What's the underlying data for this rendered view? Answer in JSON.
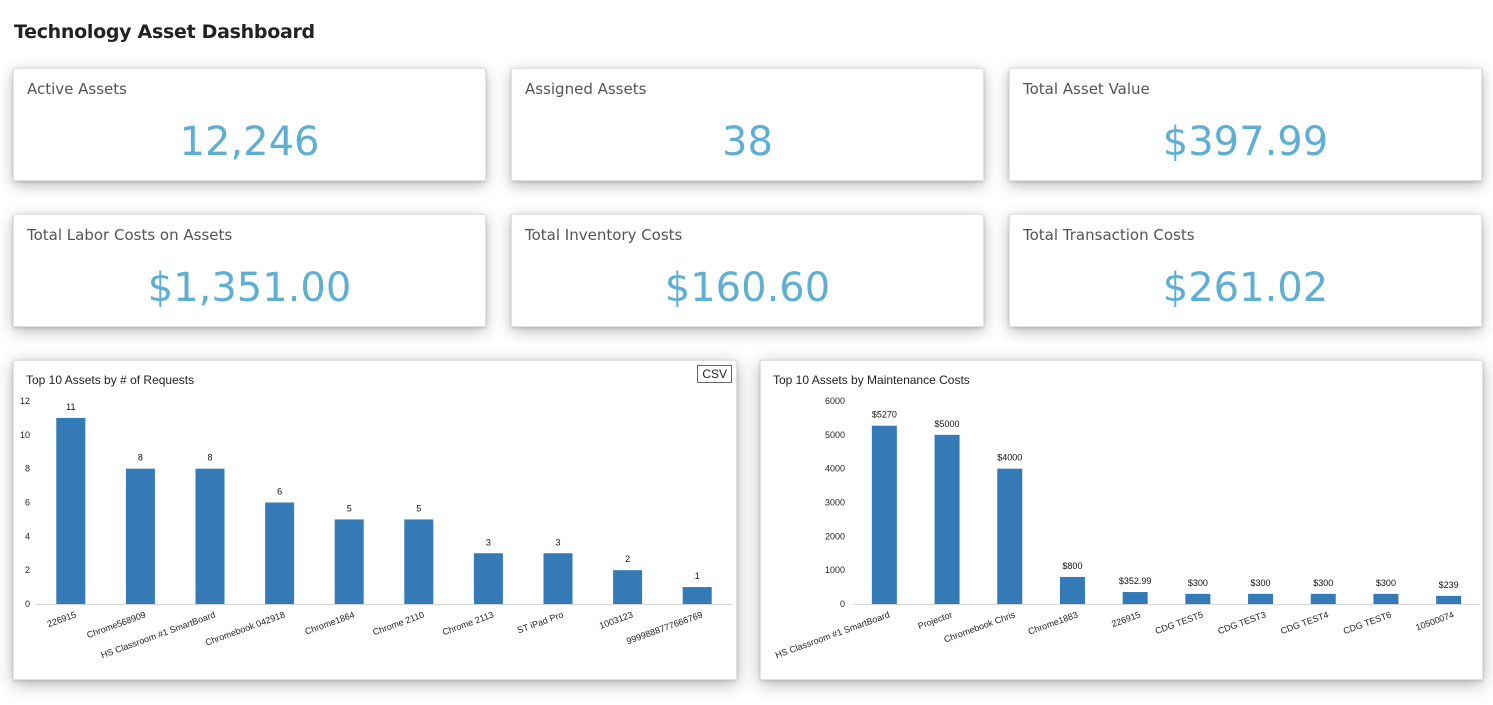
{
  "page": {
    "title": "Technology Asset Dashboard"
  },
  "stats": [
    {
      "label": "Active Assets",
      "value": "12,246"
    },
    {
      "label": "Assigned Assets",
      "value": "38"
    },
    {
      "label": "Total Asset Value",
      "value": "$397.99"
    },
    {
      "label": "Total Labor Costs on Assets",
      "value": "$1,351.00"
    },
    {
      "label": "Total Inventory Costs",
      "value": "$160.60"
    },
    {
      "label": "Total Transaction Costs",
      "value": "$261.02"
    }
  ],
  "charts": {
    "csv_label": "CSV"
  },
  "colors": {
    "accent": "#5fafd3",
    "bar": "#337ab7"
  },
  "chart_data": [
    {
      "type": "bar",
      "title": "Top 10 Assets by # of Requests",
      "categories": [
        "226915",
        "Chrome568909",
        "HS Classroom #1 SmartBoard",
        "Chromebook 042918",
        "Chrome1864",
        "Chrome 2110",
        "Chrome 2113",
        "ST iPad Pro",
        "1003123",
        "9999888777666769"
      ],
      "values": [
        11,
        8,
        8,
        6,
        5,
        5,
        3,
        3,
        2,
        1
      ],
      "data_labels": [
        "11",
        "8",
        "8",
        "6",
        "5",
        "5",
        "3",
        "3",
        "2",
        "1"
      ],
      "yticks": [
        "0",
        "2",
        "4",
        "6",
        "8",
        "10",
        "12"
      ],
      "ylim": [
        0,
        12
      ],
      "xlabel": "",
      "ylabel": "",
      "grid": false
    },
    {
      "type": "bar",
      "title": "Top 10 Assets by Maintenance Costs",
      "categories": [
        "HS Classroom #1 SmartBoard",
        "Projector",
        "Chromebook Chris",
        "Chrome1883",
        "226915",
        "CDG TEST5",
        "CDG TEST3",
        "CDG TEST4",
        "CDG TEST6",
        "10500074"
      ],
      "values": [
        5270,
        5000,
        4000,
        800,
        352.99,
        300,
        300,
        300,
        300,
        239
      ],
      "data_labels": [
        "$5270",
        "$5000",
        "$4000",
        "$800",
        "$352.99",
        "$300",
        "$300",
        "$300",
        "$300",
        "$239"
      ],
      "yticks": [
        "0",
        "1000",
        "2000",
        "3000",
        "4000",
        "5000",
        "6000"
      ],
      "ylim": [
        0,
        6000
      ],
      "xlabel": "",
      "ylabel": "",
      "grid": false
    }
  ]
}
